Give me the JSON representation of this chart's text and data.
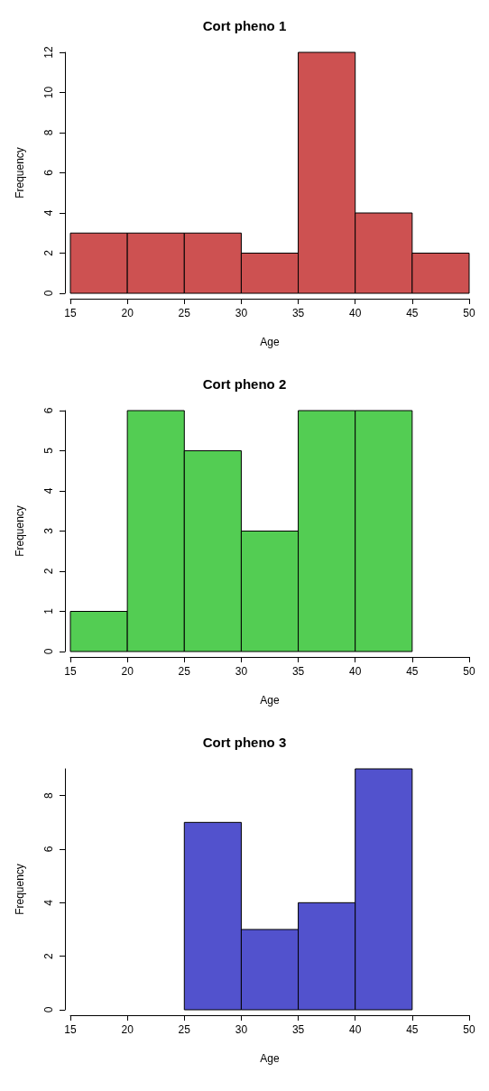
{
  "chart_data": [
    {
      "type": "histogram",
      "title": "Cort pheno 1",
      "xlabel": "Age",
      "ylabel": "Frequency",
      "bins": [
        15,
        20,
        25,
        30,
        35,
        40,
        45,
        50
      ],
      "values": [
        3,
        3,
        3,
        2,
        12,
        4,
        2
      ],
      "color": "#cd5151",
      "xlim": [
        15,
        50
      ],
      "xticks": [
        15,
        20,
        25,
        30,
        35,
        40,
        45,
        50
      ],
      "ylim": [
        0,
        12
      ],
      "yticks": [
        0,
        2,
        4,
        6,
        8,
        10,
        12
      ]
    },
    {
      "type": "histogram",
      "title": "Cort pheno 2",
      "xlabel": "Age",
      "ylabel": "Frequency",
      "bins": [
        15,
        20,
        25,
        30,
        35,
        40,
        45
      ],
      "values": [
        1,
        6,
        5,
        3,
        6,
        6
      ],
      "color": "#53cd53",
      "xlim": [
        15,
        50
      ],
      "xticks": [
        15,
        20,
        25,
        30,
        35,
        40,
        45,
        50
      ],
      "ylim": [
        0,
        6
      ],
      "yticks": [
        0,
        1,
        2,
        3,
        4,
        5,
        6
      ]
    },
    {
      "type": "histogram",
      "title": "Cort pheno 3",
      "xlabel": "Age",
      "ylabel": "Frequency",
      "bins": [
        25,
        30,
        35,
        40,
        45
      ],
      "values": [
        7,
        3,
        4,
        9
      ],
      "color": "#5252cd",
      "xlim": [
        15,
        50
      ],
      "xticks": [
        15,
        20,
        25,
        30,
        35,
        40,
        45,
        50
      ],
      "ylim": [
        0,
        9
      ],
      "yticks": [
        0,
        2,
        4,
        6,
        8
      ]
    }
  ]
}
